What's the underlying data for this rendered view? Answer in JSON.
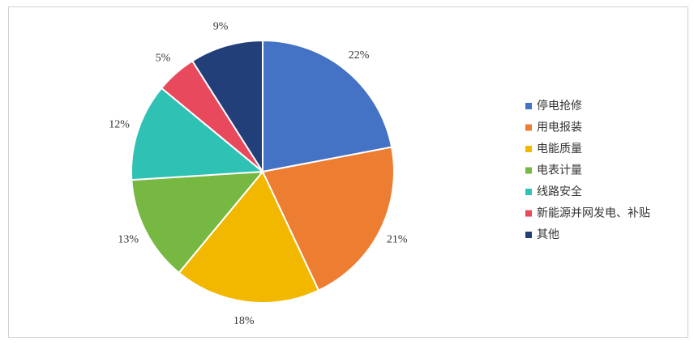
{
  "chart_data": {
    "type": "pie",
    "categories": [
      "停电抢修",
      "用电报装",
      "电能质量",
      "电表计量",
      "线路安全",
      "新能源并网发电、补贴",
      "其他"
    ],
    "values": [
      22,
      21,
      18,
      13,
      12,
      5,
      9
    ],
    "value_labels": [
      "22%",
      "21%",
      "18%",
      "13%",
      "12%",
      "5%",
      "9%"
    ],
    "colors": [
      "#4472c4",
      "#ed7d31",
      "#f2b800",
      "#76b842",
      "#2fc2b4",
      "#e8495c",
      "#223f7a"
    ],
    "legend": "right"
  }
}
